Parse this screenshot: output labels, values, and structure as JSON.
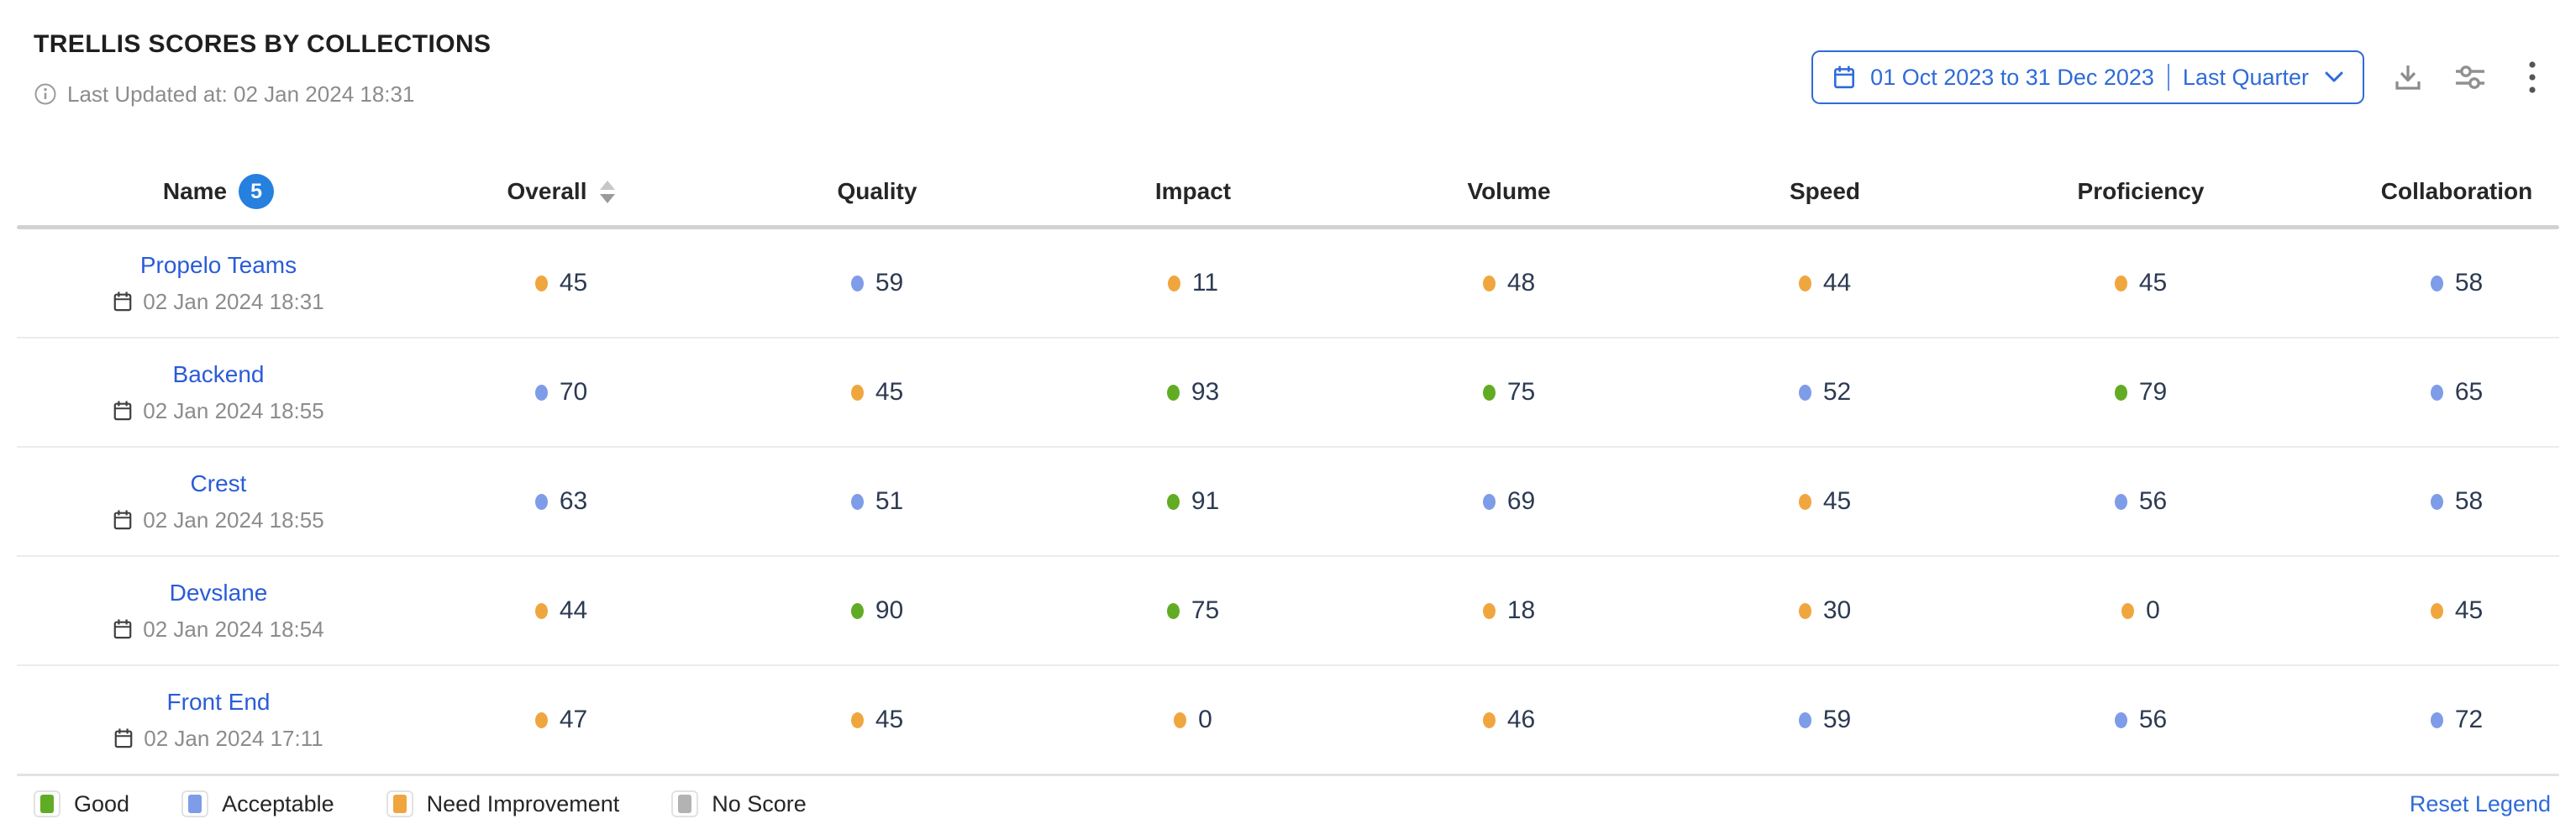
{
  "widget": {
    "title": "TRELLIS SCORES BY COLLECTIONS",
    "last_updated_label": "Last Updated at: 02 Jan 2024 18:31"
  },
  "controls": {
    "date_range_label": "01 Oct 2023 to 31 Dec 2023",
    "date_preset_label": "Last Quarter"
  },
  "table": {
    "columns": [
      {
        "label": "Name",
        "badge": "5"
      },
      {
        "label": "Overall",
        "sortable": true
      },
      {
        "label": "Quality"
      },
      {
        "label": "Impact"
      },
      {
        "label": "Volume"
      },
      {
        "label": "Speed"
      },
      {
        "label": "Proficiency"
      },
      {
        "label": "Collaboration"
      }
    ],
    "rows": [
      {
        "name": "Propelo Teams",
        "updated": "02 Jan 2024 18:31",
        "scores": [
          {
            "value": "45",
            "level": "need_improvement"
          },
          {
            "value": "59",
            "level": "acceptable"
          },
          {
            "value": "11",
            "level": "need_improvement"
          },
          {
            "value": "48",
            "level": "need_improvement"
          },
          {
            "value": "44",
            "level": "need_improvement"
          },
          {
            "value": "45",
            "level": "need_improvement"
          },
          {
            "value": "58",
            "level": "acceptable"
          }
        ]
      },
      {
        "name": "Backend",
        "updated": "02 Jan 2024 18:55",
        "scores": [
          {
            "value": "70",
            "level": "acceptable"
          },
          {
            "value": "45",
            "level": "need_improvement"
          },
          {
            "value": "93",
            "level": "good"
          },
          {
            "value": "75",
            "level": "good"
          },
          {
            "value": "52",
            "level": "acceptable"
          },
          {
            "value": "79",
            "level": "good"
          },
          {
            "value": "65",
            "level": "acceptable"
          }
        ]
      },
      {
        "name": "Crest",
        "updated": "02 Jan 2024 18:55",
        "scores": [
          {
            "value": "63",
            "level": "acceptable"
          },
          {
            "value": "51",
            "level": "acceptable"
          },
          {
            "value": "91",
            "level": "good"
          },
          {
            "value": "69",
            "level": "acceptable"
          },
          {
            "value": "45",
            "level": "need_improvement"
          },
          {
            "value": "56",
            "level": "acceptable"
          },
          {
            "value": "58",
            "level": "acceptable"
          }
        ]
      },
      {
        "name": "Devslane",
        "updated": "02 Jan 2024 18:54",
        "scores": [
          {
            "value": "44",
            "level": "need_improvement"
          },
          {
            "value": "90",
            "level": "good"
          },
          {
            "value": "75",
            "level": "good"
          },
          {
            "value": "18",
            "level": "need_improvement"
          },
          {
            "value": "30",
            "level": "need_improvement"
          },
          {
            "value": "0",
            "level": "need_improvement"
          },
          {
            "value": "45",
            "level": "need_improvement"
          }
        ]
      },
      {
        "name": "Front End",
        "updated": "02 Jan 2024 17:11",
        "scores": [
          {
            "value": "47",
            "level": "need_improvement"
          },
          {
            "value": "45",
            "level": "need_improvement"
          },
          {
            "value": "0",
            "level": "need_improvement"
          },
          {
            "value": "46",
            "level": "need_improvement"
          },
          {
            "value": "59",
            "level": "acceptable"
          },
          {
            "value": "56",
            "level": "acceptable"
          },
          {
            "value": "72",
            "level": "acceptable"
          }
        ]
      }
    ]
  },
  "legend": {
    "items": [
      {
        "label": "Good",
        "level": "good"
      },
      {
        "label": "Acceptable",
        "level": "acceptable"
      },
      {
        "label": "Need Improvement",
        "level": "need_improvement"
      },
      {
        "label": "No Score",
        "level": "no_score"
      }
    ],
    "reset_label": "Reset Legend"
  },
  "icons": [
    "info-icon",
    "calendar-icon",
    "chevron-down-icon",
    "download-icon",
    "filter-sliders-icon",
    "kebab-menu-icon",
    "sort-caret-icon"
  ],
  "colors": {
    "good": "#61ac24",
    "acceptable": "#7e9ce8",
    "need_improvement": "#f0a63f",
    "no_score": "#b3b3b3",
    "link_blue": "#2a5cd8",
    "control_blue": "#2e6bd8",
    "badge_blue": "#2680dd",
    "score_text": "#2c3a52"
  }
}
